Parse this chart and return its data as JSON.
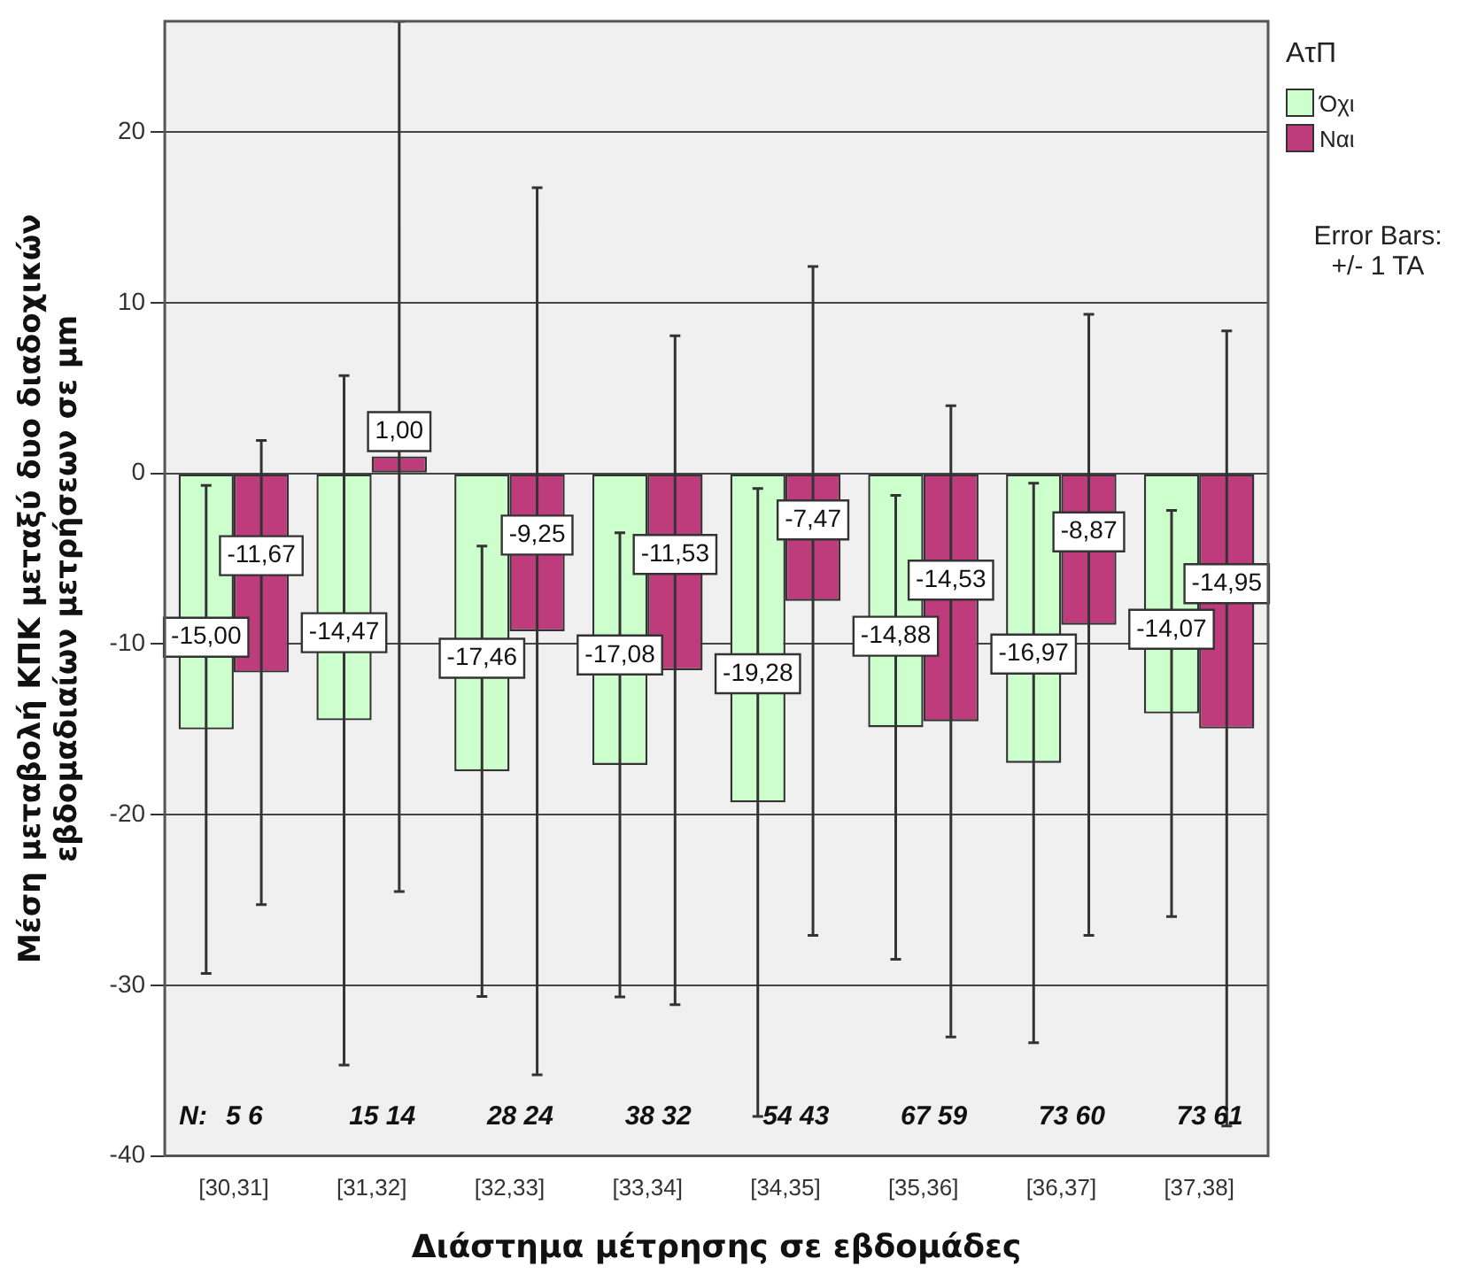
{
  "chart_data": {
    "type": "bar",
    "xlabel": "Διάστημα μέτρησης σε εβδομάδες",
    "ylabel": "Μέση μεταβολή ΚΠΚ μεταξύ δυο διαδοχικών εβδομαδιαίων μετρήσεων σε μm",
    "legend_title": "ΑτΠ",
    "categories": [
      "[30,31]",
      "[31,32]",
      "[32,33]",
      "[33,34]",
      "[34,35]",
      "[35,36]",
      "[36,37]",
      "[37,38]"
    ],
    "series": [
      {
        "name": "Όχι",
        "color": "#ccffcc",
        "values": [
          -15.0,
          -14.47,
          -17.46,
          -17.08,
          -19.28,
          -14.88,
          -16.97,
          -14.07
        ],
        "value_labels": [
          "-15,00",
          "-14,47",
          "-17,46",
          "-17,08",
          "-19,28",
          "-14,88",
          "-16,97",
          "-14,07"
        ],
        "errors": [
          14.3,
          20.2,
          13.2,
          13.6,
          18.4,
          13.6,
          16.4,
          11.9
        ]
      },
      {
        "name": "Ναι",
        "color": "#be3c7c",
        "values": [
          -11.67,
          1.0,
          -9.25,
          -11.53,
          -7.47,
          -14.53,
          -8.87,
          -14.95
        ],
        "value_labels": [
          "-11,67",
          "1,00",
          "-9,25",
          "-11,53",
          "-7,47",
          "-14,53",
          "-8,87",
          "-14,95"
        ],
        "errors": [
          13.6,
          25.5,
          26.0,
          19.6,
          19.6,
          18.5,
          18.2,
          23.3
        ]
      }
    ],
    "ylim": [
      -40,
      26.5
    ],
    "yticks": [
      -40,
      -30,
      -20,
      -10,
      0,
      10,
      20
    ],
    "grid": "y",
    "legend": "top right",
    "annotations": [
      "Error Bars:\n+/- 1 TA",
      "N:",
      "5 6",
      "15 14",
      "28 24",
      "38 32",
      "54 43",
      "67 59",
      "73 60",
      "73 61"
    ]
  }
}
